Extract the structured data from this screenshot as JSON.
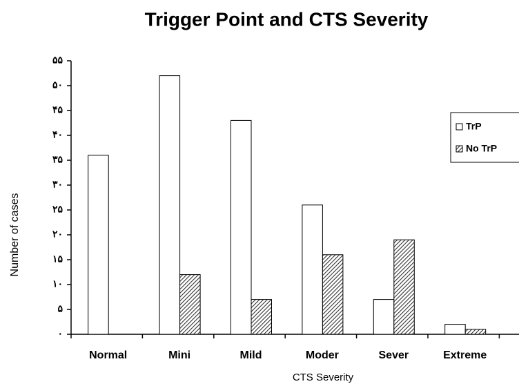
{
  "chart_data": {
    "type": "bar",
    "title": "Trigger Point and CTS Severity",
    "x_label": "CTS Severity",
    "y_label": "Number of cases",
    "categories": [
      "Normal",
      "Mini",
      "Mild",
      "Moder",
      "Sever",
      "Extreme"
    ],
    "series": [
      {
        "name": "TrP",
        "color": "#ffffff",
        "values": [
          36,
          52,
          43,
          26,
          7,
          2
        ]
      },
      {
        "name": "No TrP",
        "color": "#333333",
        "values": [
          0,
          12,
          7,
          16,
          19,
          1
        ]
      }
    ],
    "ylim": [
      0,
      55
    ],
    "yticks": [
      {
        "value": 0,
        "label": "۰"
      },
      {
        "value": 5,
        "label": "۵"
      },
      {
        "value": 10,
        "label": "۱۰"
      },
      {
        "value": 15,
        "label": "۱۵"
      },
      {
        "value": 20,
        "label": "۲۰"
      },
      {
        "value": 25,
        "label": "۲۵"
      },
      {
        "value": 30,
        "label": "۳۰"
      },
      {
        "value": 35,
        "label": "۳۵"
      },
      {
        "value": 40,
        "label": "۴۰"
      },
      {
        "value": 45,
        "label": "۴۵"
      },
      {
        "value": 50,
        "label": "۵۰"
      },
      {
        "value": 55,
        "label": "۵۵"
      }
    ],
    "grid": false,
    "legend": "right"
  }
}
